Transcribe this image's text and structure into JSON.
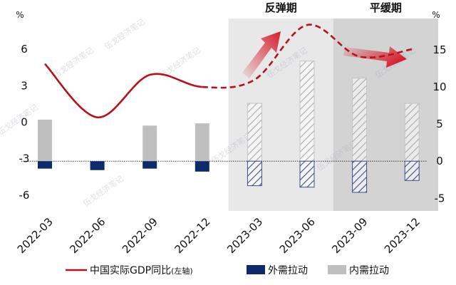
{
  "chart_data": {
    "type": "bar",
    "title": "",
    "categories": [
      "2022-03",
      "2022-06",
      "2022-09",
      "2022-12",
      "2023-03",
      "2023-06",
      "2023-09",
      "2023-12"
    ],
    "left_axis": {
      "unit": "%",
      "ticks": [
        6,
        3,
        0,
        -3,
        -6
      ],
      "ylim": [
        -7.3,
        9.0
      ]
    },
    "right_axis": {
      "unit": "%",
      "ticks": [
        15,
        10,
        5,
        0,
        -5
      ],
      "ylim": [
        -6.7,
        20.0
      ]
    },
    "phases": [
      {
        "label": "反弹期",
        "from": "2023-03",
        "to": "2023-06",
        "color": "#e8e8e8"
      },
      {
        "label": "平缓期",
        "from": "2023-09",
        "to": "2023-12",
        "color": "#d3d3d3"
      }
    ],
    "series": [
      {
        "name": "中国实际GDP同比",
        "axis_note": "(左轴)",
        "kind": "line",
        "axis": "left",
        "color": "#b5121b",
        "values": [
          4.8,
          0.4,
          3.9,
          2.9,
          3.5,
          8.0,
          5.4,
          6.0
        ],
        "forecast_from_index": 3
      },
      {
        "name": "外需拉动",
        "kind": "bar",
        "axis": "right",
        "color": "#0d2a6b",
        "values": [
          -1.0,
          -1.2,
          -1.0,
          -1.4,
          -3.3,
          -3.5,
          -4.2,
          -2.6
        ]
      },
      {
        "name": "内需拉动",
        "kind": "bar",
        "axis": "right",
        "color": "#bfbfbf",
        "values": [
          5.6,
          -0.7,
          4.8,
          5.1,
          7.8,
          13.5,
          11.2,
          7.8
        ]
      }
    ],
    "forecast_from_index": 4,
    "legend_position": "bottom",
    "watermark": "伍戈经济笔记",
    "grid": false
  }
}
